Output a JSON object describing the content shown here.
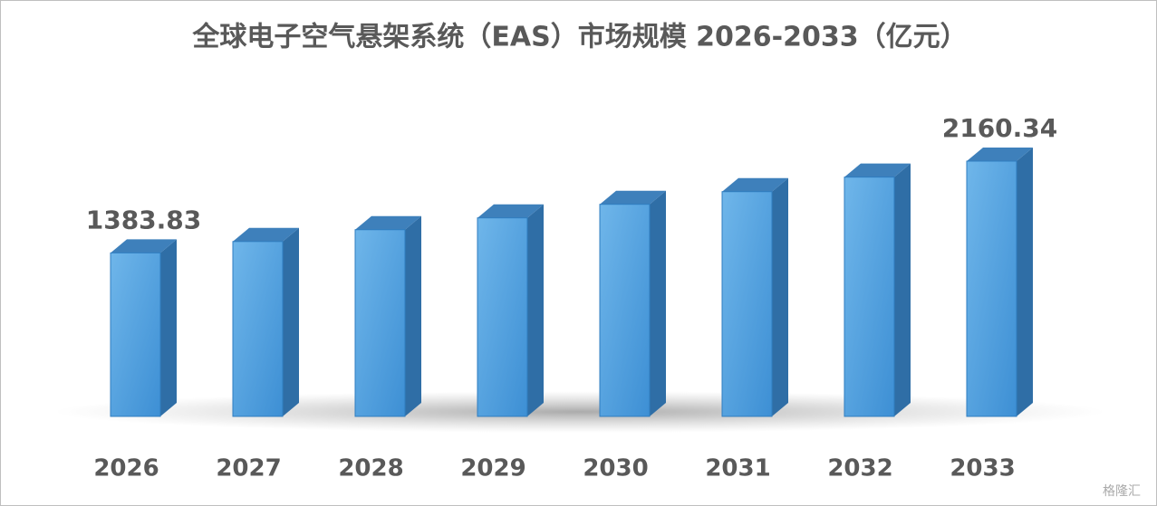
{
  "chart_data": {
    "type": "bar3d",
    "title": "全球电子空气悬架系统（EAS）市场规模 2026-2033（亿元）",
    "categories": [
      "2026",
      "2027",
      "2028",
      "2029",
      "2030",
      "2031",
      "2032",
      "2033"
    ],
    "values": [
      1383.83,
      1480,
      1580,
      1680,
      1795,
      1902,
      2025,
      2160.34
    ],
    "value_labels": [
      "1383.83",
      null,
      null,
      null,
      null,
      null,
      null,
      "2160.34"
    ],
    "color": "#5aa5e0"
  },
  "watermark": "格隆汇"
}
